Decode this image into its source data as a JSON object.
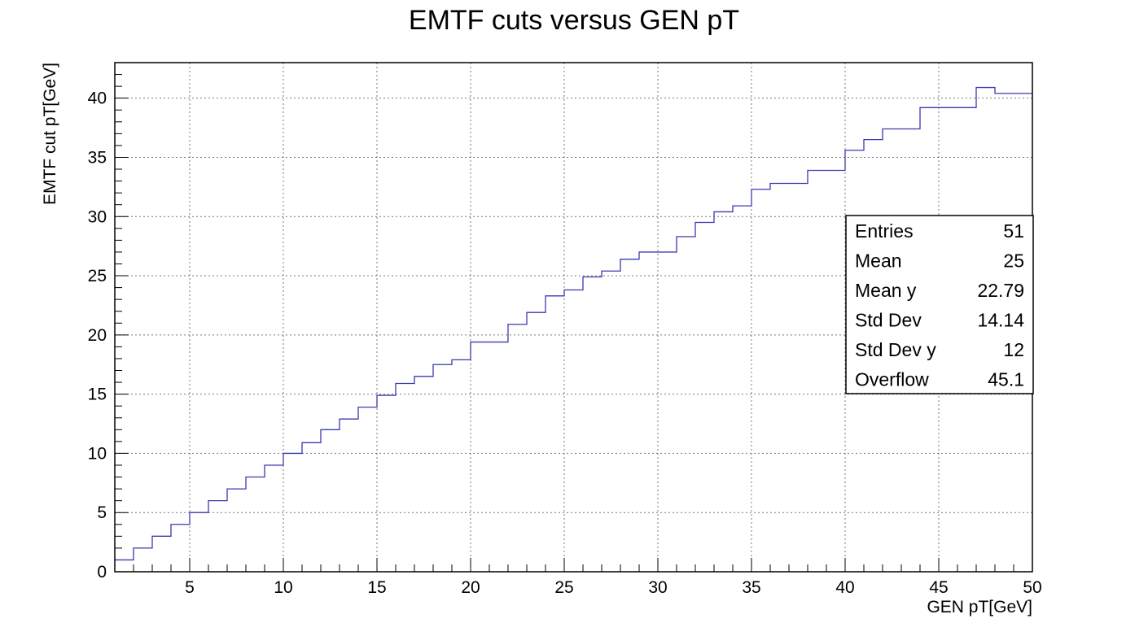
{
  "chart_data": {
    "type": "line",
    "style": "step",
    "title": "EMTF cuts versus GEN pT",
    "xlabel": "GEN pT[GeV]",
    "ylabel": "EMTF cut pT[GeV]",
    "xlim": [
      1,
      50
    ],
    "ylim": [
      0,
      43
    ],
    "xticks": [
      5,
      10,
      15,
      20,
      25,
      30,
      35,
      40,
      45,
      50
    ],
    "yticks": [
      0,
      5,
      10,
      15,
      20,
      25,
      30,
      35,
      40
    ],
    "grid": true,
    "line_color": "#3a3ab0",
    "x": [
      1,
      2,
      3,
      4,
      5,
      6,
      7,
      8,
      9,
      10,
      11,
      12,
      13,
      14,
      15,
      16,
      17,
      18,
      19,
      20,
      22,
      23,
      24,
      25,
      26,
      27,
      28,
      29,
      31,
      32,
      33,
      34,
      35,
      36,
      38,
      40,
      41,
      42,
      44,
      47,
      48,
      50
    ],
    "values": [
      1.0,
      2.0,
      3.0,
      4.0,
      5.0,
      6.0,
      7.0,
      8.0,
      9.0,
      10.0,
      10.9,
      12.0,
      12.9,
      13.9,
      14.9,
      15.9,
      16.5,
      17.5,
      17.9,
      19.4,
      20.9,
      21.9,
      23.3,
      23.8,
      24.9,
      25.4,
      26.4,
      27.0,
      28.3,
      29.5,
      30.4,
      30.9,
      32.3,
      32.8,
      33.9,
      35.6,
      36.5,
      37.4,
      39.2,
      40.9,
      40.4,
      40.4
    ],
    "stats_box": {
      "position": "right",
      "rows": [
        {
          "label": "Entries",
          "value": "51"
        },
        {
          "label": "Mean",
          "value": "25"
        },
        {
          "label": "Mean y",
          "value": "22.79"
        },
        {
          "label": "Std Dev",
          "value": "14.14"
        },
        {
          "label": "Std Dev y",
          "value": "12"
        },
        {
          "label": "Overflow",
          "value": "45.1"
        }
      ]
    }
  }
}
